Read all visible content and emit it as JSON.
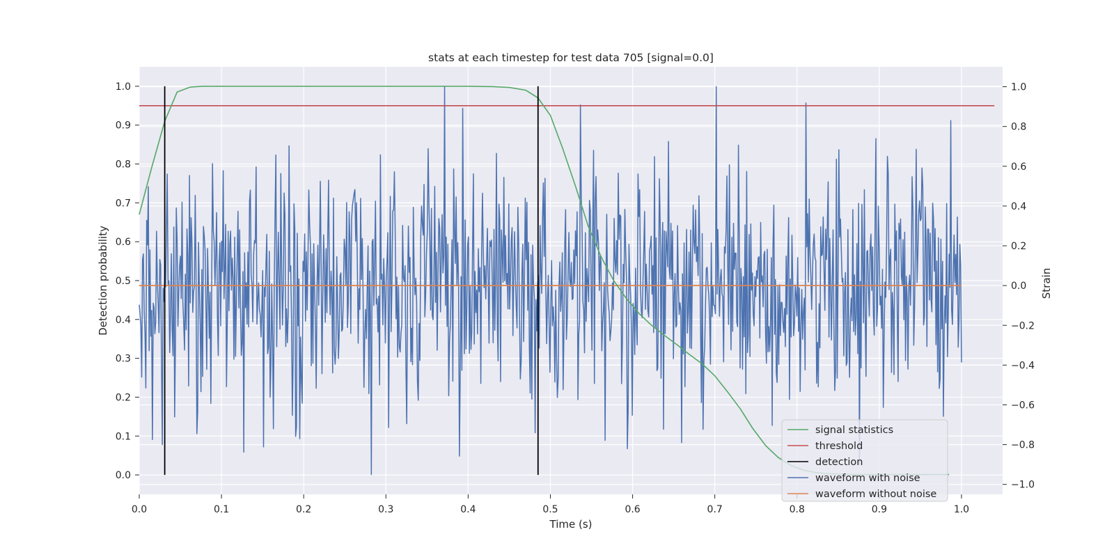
{
  "chart_data": {
    "type": "line",
    "title": "stats at each timestep for test data 705 [signal=0.0]",
    "xlabel": "Time (s)",
    "ylabel_left": "Detection probability",
    "ylabel_right": "Strain",
    "xlim": [
      0.0,
      1.05
    ],
    "ylim_left": [
      -0.05,
      1.05
    ],
    "ylim_right": [
      -1.05,
      1.1
    ],
    "x_ticks": [
      "0.0",
      "0.1",
      "0.2",
      "0.3",
      "0.4",
      "0.5",
      "0.6",
      "0.7",
      "0.8",
      "0.9",
      "1.0"
    ],
    "y_left_ticks": [
      "0.0",
      "0.1",
      "0.2",
      "0.3",
      "0.4",
      "0.5",
      "0.6",
      "0.7",
      "0.8",
      "0.9",
      "1.0"
    ],
    "y_right_ticks": [
      "−1.0",
      "−0.8",
      "−0.6",
      "−0.4",
      "−0.2",
      "0.0",
      "0.2",
      "0.4",
      "0.6",
      "0.8",
      "1.0"
    ],
    "grid": true,
    "legend_position": "lower-right",
    "colors": {
      "background": "#eaeaf2",
      "grid": "#ffffff",
      "signal_statistics": "#55a868",
      "threshold": "#c44e52",
      "detection": "#000000",
      "waveform_with_noise": "#4c72b0",
      "waveform_without_noise": "#dd8452"
    },
    "series": [
      {
        "name": "signal statistics",
        "axis": "left",
        "x": [
          0.0,
          0.015,
          0.031,
          0.046,
          0.062,
          0.077,
          0.1,
          0.2,
          0.3,
          0.4,
          0.43,
          0.45,
          0.47,
          0.485,
          0.5,
          0.515,
          0.531,
          0.546,
          0.562,
          0.577,
          0.592,
          0.608,
          0.623,
          0.638,
          0.654,
          0.669,
          0.685,
          0.7,
          0.715,
          0.731,
          0.746,
          0.762,
          0.777,
          0.792,
          0.808,
          0.823,
          0.838,
          0.854,
          0.869,
          0.885,
          0.9,
          0.92,
          0.95,
          0.985
        ],
        "y": [
          0.67,
          0.79,
          0.91,
          0.985,
          0.998,
          1.0,
          1.0,
          1.0,
          1.0,
          1.0,
          0.999,
          0.997,
          0.99,
          0.97,
          0.925,
          0.84,
          0.74,
          0.64,
          0.56,
          0.5,
          0.455,
          0.415,
          0.385,
          0.36,
          0.335,
          0.31,
          0.285,
          0.255,
          0.215,
          0.17,
          0.12,
          0.075,
          0.045,
          0.025,
          0.012,
          0.006,
          0.003,
          0.002,
          0.001,
          0.001,
          0.001,
          0.001,
          0.001,
          0.001
        ]
      },
      {
        "name": "threshold",
        "axis": "left",
        "x": [
          0.0,
          1.04
        ],
        "y": [
          0.95,
          0.95
        ]
      },
      {
        "name": "detection",
        "axis": "left",
        "x": [
          0.031,
          0.485
        ],
        "y_range": [
          0.0,
          1.0
        ]
      },
      {
        "name": "waveform with noise",
        "axis": "right",
        "n_points": 1000,
        "x_range": [
          0.0,
          1.0
        ],
        "y_min": -0.95,
        "y_max": 1.0,
        "std": 0.3,
        "notable_points": [
          {
            "x": 0.371,
            "y": 1.0
          },
          {
            "x": 0.028,
            "y": -0.8
          },
          {
            "x": 0.163,
            "y": -0.72
          },
          {
            "x": 0.66,
            "y": -0.79
          },
          {
            "x": 0.876,
            "y": -0.9
          },
          {
            "x": 0.987,
            "y": 0.83
          },
          {
            "x": 0.553,
            "y": 0.68
          }
        ]
      },
      {
        "name": "waveform without noise",
        "axis": "right",
        "x": [
          0.0,
          1.0
        ],
        "y": [
          0.0,
          0.0
        ]
      }
    ]
  }
}
